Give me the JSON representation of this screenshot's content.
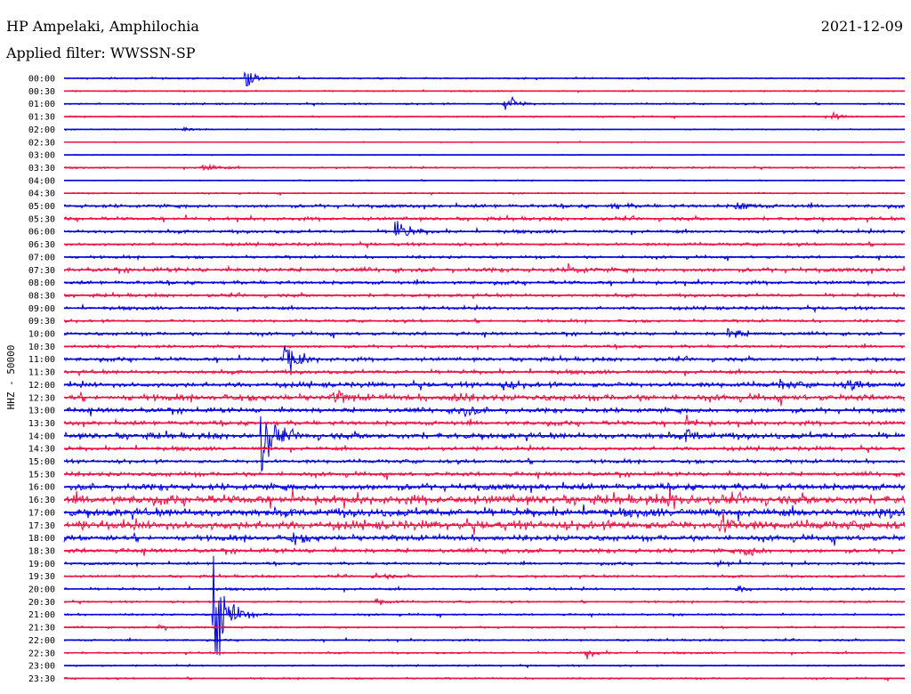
{
  "header": {
    "station": "HP Ampelaki, Amphilochia",
    "date": "2021-12-09",
    "filter": "Applied filter: WWSSN-SP"
  },
  "colors": {
    "even_trace": "#0000dd",
    "odd_trace": "#ee1144",
    "text": "#000000",
    "background": "#ffffff"
  },
  "chart_data": {
    "type": "line",
    "title": "HP Ampelaki, Amphilochia",
    "subtitle": "Applied filter: WWSSN-SP",
    "ylabel": "HHZ - 50000",
    "xlabel": "",
    "grid": false,
    "legend": "none",
    "categories": [
      "00:00",
      "00:30",
      "01:00",
      "01:30",
      "02:00",
      "02:30",
      "03:00",
      "03:30",
      "04:00",
      "04:30",
      "05:00",
      "05:30",
      "06:00",
      "06:30",
      "07:00",
      "07:30",
      "08:00",
      "08:30",
      "09:00",
      "09:30",
      "10:00",
      "10:30",
      "11:00",
      "11:30",
      "12:00",
      "12:30",
      "13:00",
      "13:30",
      "14:00",
      "14:30",
      "15:00",
      "15:30",
      "16:00",
      "16:30",
      "17:00",
      "17:30",
      "18:00",
      "18:30",
      "19:00",
      "19:30",
      "20:00",
      "20:30",
      "21:00",
      "21:30",
      "22:00",
      "22:30",
      "23:00",
      "23:30"
    ],
    "noise": [
      0.6,
      0.5,
      0.6,
      0.5,
      0.4,
      0.3,
      0.3,
      0.6,
      0.4,
      0.5,
      1.3,
      1.3,
      1.2,
      1.1,
      1.0,
      1.6,
      1.3,
      1.2,
      1.2,
      1.0,
      1.2,
      1.1,
      1.4,
      1.4,
      1.8,
      2.2,
      1.8,
      1.6,
      2.2,
      1.4,
      1.3,
      1.5,
      2.4,
      3.3,
      3.0,
      3.1,
      2.0,
      1.6,
      1.0,
      0.9,
      0.9,
      0.7,
      0.7,
      0.7,
      0.7,
      0.7,
      0.6,
      0.6
    ],
    "events": [
      {
        "row": 0,
        "x": 0.215,
        "amp": 8
      },
      {
        "row": 2,
        "x": 0.524,
        "amp": 8
      },
      {
        "row": 3,
        "x": 0.913,
        "amp": 3
      },
      {
        "row": 4,
        "x": 0.142,
        "amp": 2
      },
      {
        "row": 7,
        "x": 0.165,
        "amp": 5
      },
      {
        "row": 10,
        "x": 0.8,
        "amp": 5
      },
      {
        "row": 10,
        "x": 0.65,
        "amp": 3
      },
      {
        "row": 12,
        "x": 0.394,
        "amp": 12
      },
      {
        "row": 15,
        "x": 0.6,
        "amp": 4
      },
      {
        "row": 20,
        "x": 0.79,
        "amp": 6
      },
      {
        "row": 22,
        "x": 0.262,
        "amp": 18
      },
      {
        "row": 24,
        "x": 0.52,
        "amp": 4
      },
      {
        "row": 24,
        "x": 0.85,
        "amp": 4
      },
      {
        "row": 24,
        "x": 0.93,
        "amp": 5
      },
      {
        "row": 25,
        "x": 0.32,
        "amp": 5
      },
      {
        "row": 25,
        "x": 0.46,
        "amp": 5
      },
      {
        "row": 26,
        "x": 0.47,
        "amp": 7
      },
      {
        "row": 27,
        "x": 0.74,
        "amp": 4
      },
      {
        "row": 28,
        "x": 0.234,
        "amp": 28
      },
      {
        "row": 28,
        "x": 0.74,
        "amp": 5
      },
      {
        "row": 33,
        "x": 0.72,
        "amp": 7
      },
      {
        "row": 34,
        "x": 0.97,
        "amp": 5
      },
      {
        "row": 35,
        "x": 0.78,
        "amp": 9
      },
      {
        "row": 36,
        "x": 0.27,
        "amp": 5
      },
      {
        "row": 37,
        "x": 0.81,
        "amp": 6
      },
      {
        "row": 38,
        "x": 0.78,
        "amp": 3
      },
      {
        "row": 39,
        "x": 0.37,
        "amp": 3
      },
      {
        "row": 40,
        "x": 0.8,
        "amp": 3
      },
      {
        "row": 41,
        "x": 0.37,
        "amp": 4
      },
      {
        "row": 42,
        "x": 0.178,
        "amp": 60
      },
      {
        "row": 43,
        "x": 0.11,
        "amp": 3
      },
      {
        "row": 45,
        "x": 0.62,
        "amp": 4
      }
    ]
  }
}
